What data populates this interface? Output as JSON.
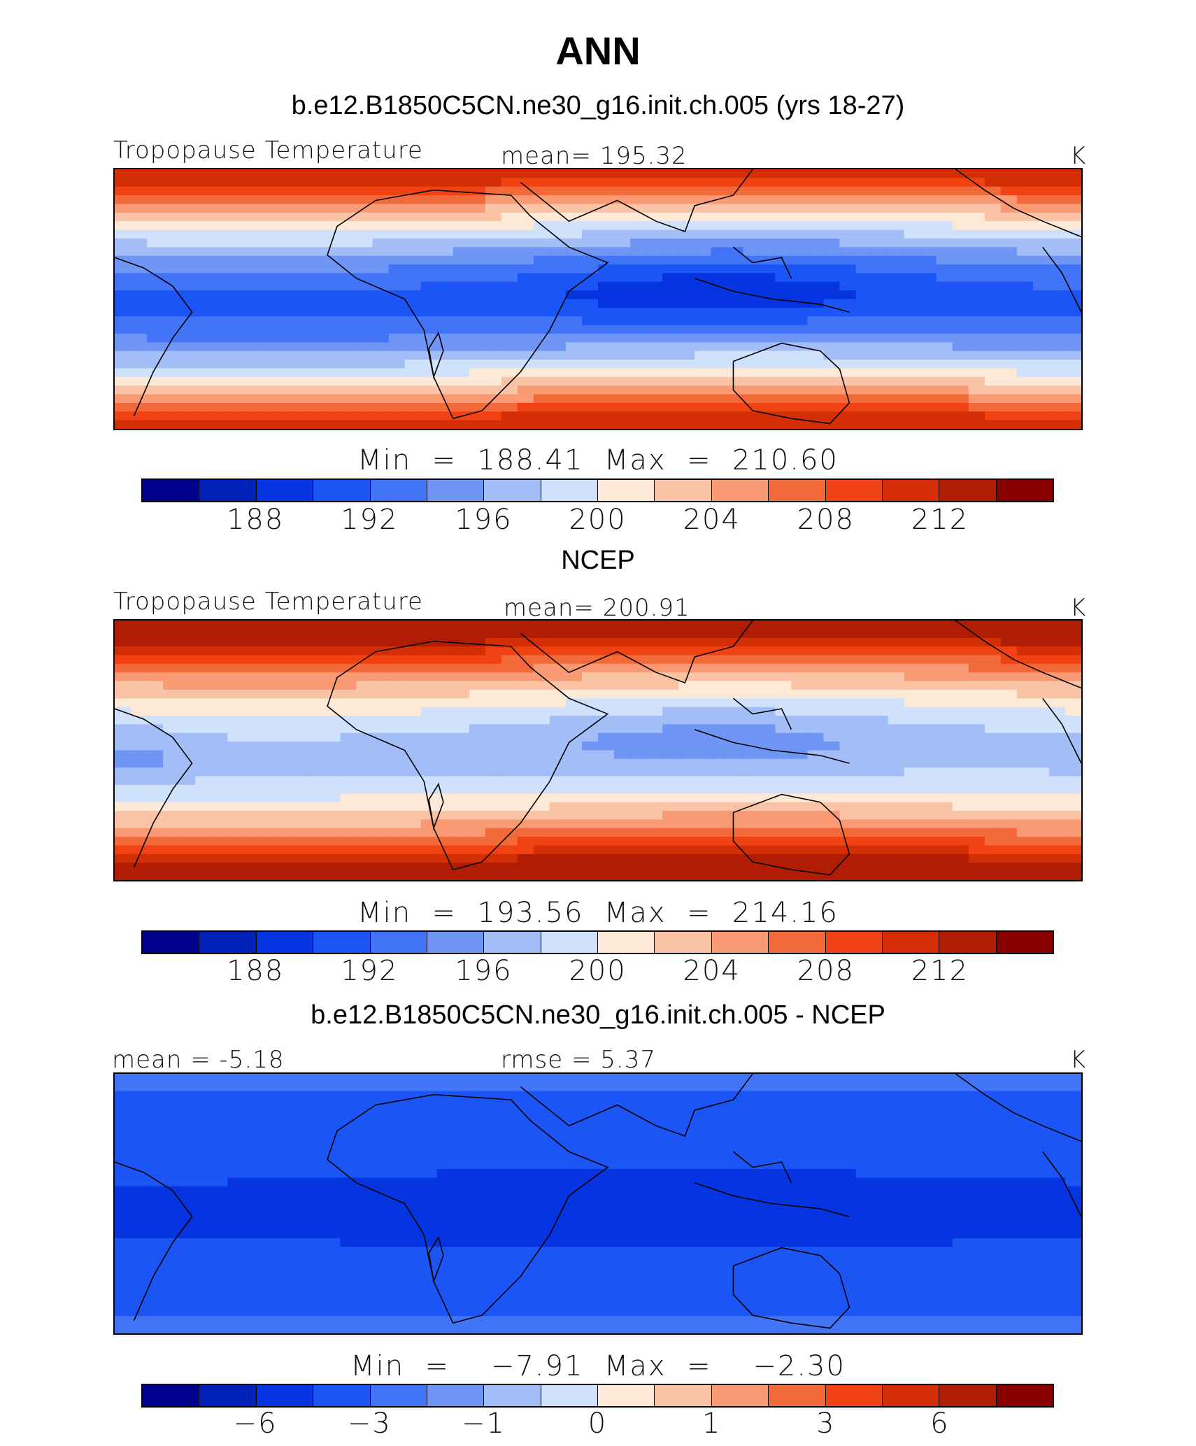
{
  "title": "ANN",
  "colorbar_colors": [
    "#00008f",
    "#0021b8",
    "#0534e0",
    "#1b55f5",
    "#4174f7",
    "#6f95f5",
    "#a3bdf7",
    "#d0e1fb",
    "#fde9d6",
    "#fbc3a6",
    "#f99a74",
    "#f36a3a",
    "#f04212",
    "#d32e06",
    "#b11c05",
    "#8a0000"
  ],
  "panels": [
    {
      "title": "b.e12.B1850C5CN.ne30_g16.init.ch.005 (yrs 18-27)",
      "left_label": "Tropopause Temperature",
      "center_label": "mean=  195.32",
      "units": "K",
      "minmax": "Min  =  188.41  Max  =  210.60",
      "ticks": [
        "188",
        "192",
        "196",
        "200",
        "204",
        "208",
        "212"
      ],
      "field": "model"
    },
    {
      "title": "NCEP",
      "left_label": "Tropopause Temperature",
      "center_label": "mean=  200.91",
      "units": "K",
      "minmax": "Min  =  193.56  Max  =  214.16",
      "ticks": [
        "188",
        "192",
        "196",
        "200",
        "204",
        "208",
        "212"
      ],
      "field": "obs"
    },
    {
      "title": "b.e12.B1850C5CN.ne30_g16.init.ch.005 - NCEP",
      "left_label": "mean =   -5.18",
      "center_label": "rmse =     5.37",
      "units": "K",
      "minmax": "Min  =    −7.91  Max  =    −2.30",
      "ticks": [
        "−6",
        "−3",
        "−1",
        "0",
        "1",
        "3",
        "6"
      ],
      "field": "diff"
    }
  ]
}
